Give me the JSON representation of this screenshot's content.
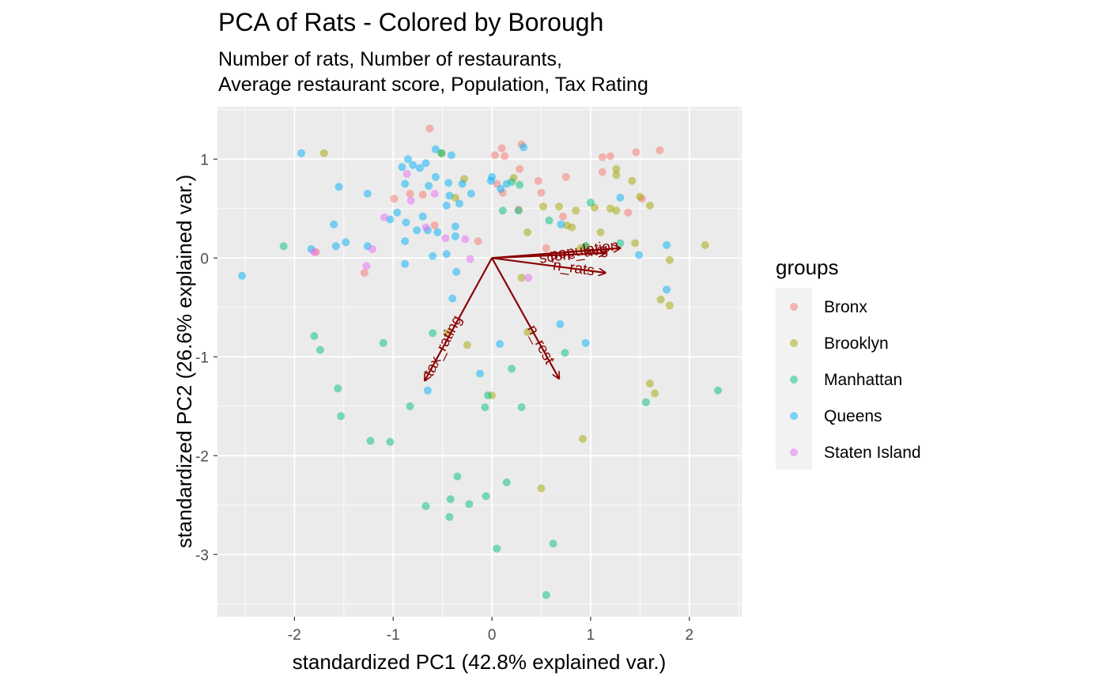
{
  "chart_data": {
    "type": "scatter",
    "title": "PCA of Rats - Colored by Borough",
    "subtitle": [
      "Number of rats, Number of restaurants,",
      "Average restaurant score, Population, Tax Rating"
    ],
    "xlabel": "standardized PC1 (42.8% explained var.)",
    "ylabel": "standardized PC2 (26.6% explained var.)",
    "xlim": [
      -2.78,
      2.53
    ],
    "ylim": [
      -3.63,
      1.53
    ],
    "xticks": [
      -2,
      -1,
      0,
      1,
      2
    ],
    "yticks": [
      1,
      0,
      -1,
      -2,
      -3
    ],
    "xtick_labels": [
      "-2",
      "-1",
      "0",
      "1",
      "2"
    ],
    "ytick_labels": [
      "1",
      "0",
      "-1",
      "-2",
      "-3"
    ],
    "grid": true,
    "legend": {
      "title": "groups",
      "position": "right"
    },
    "colors": {
      "Bronx": "#F8766D",
      "Brooklyn": "#A3A500",
      "Manhattan": "#00BF7D",
      "Queens": "#00B0F6",
      "Staten Island": "#E76BF3",
      "arrow": "#8B0000"
    },
    "loadings": [
      {
        "name": "population",
        "x": 1.3,
        "y": 0.1,
        "label_angle": -8
      },
      {
        "name": "score_avg",
        "x": 1.15,
        "y": 0.05,
        "label_angle": -8
      },
      {
        "name": "n_rats",
        "x": 1.15,
        "y": -0.15,
        "label_angle": 8
      },
      {
        "name": "n_rest",
        "x": 0.68,
        "y": -1.22,
        "label_angle": 62
      },
      {
        "name": "tax_rating",
        "x": -0.68,
        "y": -1.24,
        "label_angle": -63
      }
    ],
    "series": [
      {
        "name": "Bronx",
        "points": [
          [
            -0.63,
            1.31
          ],
          [
            0.3,
            1.15
          ],
          [
            0.1,
            1.11
          ],
          [
            0.03,
            1.04
          ],
          [
            0.13,
            1.03
          ],
          [
            0.28,
            0.9
          ],
          [
            -0.7,
            0.64
          ],
          [
            0.47,
            0.78
          ],
          [
            0.5,
            0.66
          ],
          [
            0.75,
            0.82
          ],
          [
            1.12,
            1.02
          ],
          [
            1.2,
            1.03
          ],
          [
            1.46,
            1.07
          ],
          [
            1.7,
            1.09
          ],
          [
            1.12,
            0.87
          ],
          [
            1.38,
            0.46
          ],
          [
            1.52,
            0.6
          ],
          [
            0.72,
            0.42
          ],
          [
            0.55,
            0.1
          ],
          [
            0.11,
            0.66
          ],
          [
            0.05,
            0.75
          ],
          [
            -0.58,
            0.33
          ],
          [
            -0.14,
            0.17
          ],
          [
            -0.99,
            0.6
          ],
          [
            -0.83,
            0.65
          ],
          [
            -1.78,
            0.06
          ],
          [
            -1.29,
            -0.15
          ],
          [
            0.27,
            0.49
          ]
        ]
      },
      {
        "name": "Brooklyn",
        "points": [
          [
            -1.7,
            1.06
          ],
          [
            -0.51,
            1.06
          ],
          [
            -0.28,
            0.8
          ],
          [
            -0.37,
            0.61
          ],
          [
            0.22,
            0.81
          ],
          [
            0.52,
            0.52
          ],
          [
            0.68,
            0.52
          ],
          [
            0.85,
            0.48
          ],
          [
            1.04,
            0.51
          ],
          [
            1.2,
            0.5
          ],
          [
            1.26,
            0.48
          ],
          [
            1.26,
            0.9
          ],
          [
            1.26,
            0.84
          ],
          [
            1.42,
            0.78
          ],
          [
            1.5,
            0.62
          ],
          [
            1.6,
            0.53
          ],
          [
            0.36,
            0.26
          ],
          [
            0.76,
            0.33
          ],
          [
            0.81,
            0.31
          ],
          [
            0.9,
            0.1
          ],
          [
            0.95,
            0.12
          ],
          [
            1.1,
            0.26
          ],
          [
            1.45,
            0.15
          ],
          [
            1.8,
            -0.02
          ],
          [
            2.16,
            0.13
          ],
          [
            1.71,
            -0.42
          ],
          [
            1.8,
            -0.48
          ],
          [
            0.3,
            -0.2
          ],
          [
            -0.25,
            -0.88
          ],
          [
            -0.45,
            -0.76
          ],
          [
            0.36,
            -0.75
          ],
          [
            0.92,
            -1.83
          ],
          [
            0.5,
            -2.33
          ],
          [
            1.6,
            -1.27
          ],
          [
            1.65,
            -1.37
          ],
          [
            0.0,
            -1.39
          ]
        ]
      },
      {
        "name": "Manhattan",
        "points": [
          [
            -0.51,
            1.06
          ],
          [
            0.2,
            0.77
          ],
          [
            0.27,
            0.48
          ],
          [
            0.11,
            0.48
          ],
          [
            0.58,
            0.38
          ],
          [
            0.95,
            0.12
          ],
          [
            1.0,
            0.56
          ],
          [
            1.3,
            0.15
          ],
          [
            -2.11,
            0.12
          ],
          [
            -1.8,
            -0.79
          ],
          [
            -1.74,
            -0.93
          ],
          [
            -1.1,
            -0.86
          ],
          [
            -0.6,
            -0.76
          ],
          [
            0.74,
            -0.96
          ],
          [
            -1.56,
            -1.32
          ],
          [
            -1.53,
            -1.6
          ],
          [
            -0.83,
            -1.5
          ],
          [
            -0.07,
            -1.51
          ],
          [
            -0.04,
            -1.39
          ],
          [
            0.2,
            -1.12
          ],
          [
            0.3,
            -1.51
          ],
          [
            -1.23,
            -1.85
          ],
          [
            -1.03,
            -1.86
          ],
          [
            1.56,
            -1.46
          ],
          [
            2.29,
            -1.34
          ],
          [
            -0.35,
            -2.21
          ],
          [
            0.15,
            -2.27
          ],
          [
            -0.67,
            -2.51
          ],
          [
            -0.42,
            -2.44
          ],
          [
            -0.23,
            -2.49
          ],
          [
            -0.06,
            -2.41
          ],
          [
            -0.43,
            -2.62
          ],
          [
            0.05,
            -2.94
          ],
          [
            0.62,
            -2.89
          ],
          [
            0.55,
            -3.41
          ],
          [
            0.28,
            0.74
          ]
        ]
      },
      {
        "name": "Queens",
        "points": [
          [
            -1.93,
            1.06
          ],
          [
            -0.57,
            1.1
          ],
          [
            -0.41,
            1.04
          ],
          [
            -0.85,
            1.0
          ],
          [
            -0.8,
            0.94
          ],
          [
            -0.67,
            0.96
          ],
          [
            -0.73,
            0.91
          ],
          [
            -0.91,
            0.92
          ],
          [
            -0.88,
            0.75
          ],
          [
            -0.57,
            0.82
          ],
          [
            -0.44,
            0.76
          ],
          [
            -0.3,
            0.75
          ],
          [
            -0.64,
            0.73
          ],
          [
            -0.43,
            0.63
          ],
          [
            -0.21,
            0.65
          ],
          [
            -0.33,
            0.55
          ],
          [
            -0.46,
            0.53
          ],
          [
            -1.55,
            0.72
          ],
          [
            -1.26,
            0.65
          ],
          [
            -0.96,
            0.46
          ],
          [
            -0.7,
            0.42
          ],
          [
            -0.55,
            0.26
          ],
          [
            -0.37,
            0.22
          ],
          [
            -0.65,
            0.28
          ],
          [
            -0.87,
            0.36
          ],
          [
            -1.03,
            0.39
          ],
          [
            -1.6,
            0.34
          ],
          [
            -1.58,
            0.12
          ],
          [
            -1.48,
            0.16
          ],
          [
            -1.26,
            0.12
          ],
          [
            -0.76,
            0.28
          ],
          [
            -0.88,
            0.17
          ],
          [
            -0.37,
            0.32
          ],
          [
            -0.6,
            0.02
          ],
          [
            -0.46,
            0.04
          ],
          [
            -0.36,
            -0.14
          ],
          [
            -0.4,
            -0.41
          ],
          [
            -0.88,
            -0.06
          ],
          [
            -1.83,
            0.09
          ],
          [
            -2.53,
            -0.18
          ],
          [
            0.0,
            0.82
          ],
          [
            0.15,
            0.75
          ],
          [
            0.09,
            0.7
          ],
          [
            0.32,
            1.12
          ],
          [
            0.7,
            0.34
          ],
          [
            1.3,
            0.61
          ],
          [
            1.49,
            0.03
          ],
          [
            1.77,
            0.13
          ],
          [
            1.77,
            -0.32
          ],
          [
            0.69,
            -0.67
          ],
          [
            0.95,
            -0.86
          ],
          [
            0.08,
            -0.87
          ],
          [
            -0.12,
            -1.17
          ],
          [
            -0.65,
            -1.34
          ],
          [
            -0.01,
            0.78
          ]
        ]
      },
      {
        "name": "Staten Island",
        "points": [
          [
            -1.09,
            0.41
          ],
          [
            -0.86,
            0.85
          ],
          [
            -0.82,
            0.58
          ],
          [
            -0.58,
            0.65
          ],
          [
            -0.67,
            0.31
          ],
          [
            -1.8,
            0.06
          ],
          [
            -1.21,
            0.09
          ],
          [
            -1.27,
            -0.08
          ],
          [
            -0.47,
            0.2
          ],
          [
            -0.27,
            0.19
          ],
          [
            -0.22,
            -0.01
          ],
          [
            0.37,
            -0.2
          ]
        ]
      }
    ]
  }
}
